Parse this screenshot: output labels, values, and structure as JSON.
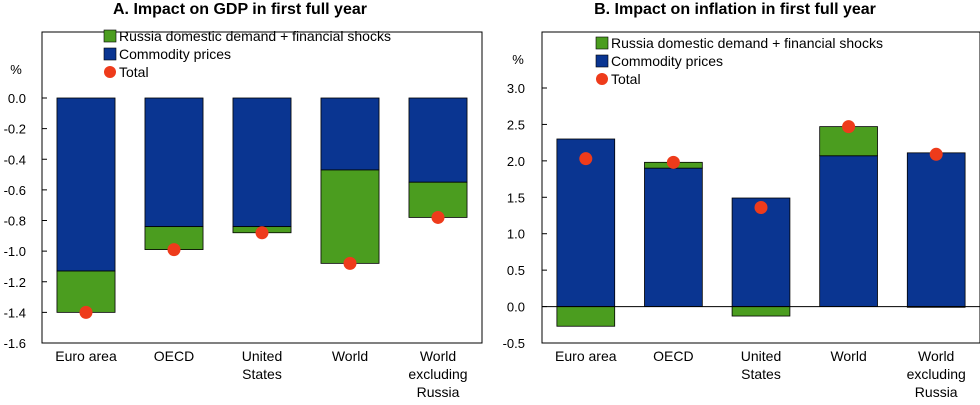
{
  "chart_data": [
    {
      "type": "bar",
      "stacked": true,
      "title": "A. Impact on GDP in first full year",
      "ylabel": "%",
      "ylim": [
        -1.6,
        0.0
      ],
      "yticks": [
        "0.0",
        "-0.2",
        "-0.4",
        "-0.6",
        "-0.8",
        "-1.0",
        "-1.2",
        "-1.4",
        "-1.6"
      ],
      "categories": [
        [
          "Euro area"
        ],
        [
          "OECD"
        ],
        [
          "United",
          "States"
        ],
        [
          "World"
        ],
        [
          "World",
          "excluding",
          "Russia"
        ]
      ],
      "series": [
        {
          "name": "Commodity prices",
          "color": "#0a3591",
          "values": [
            -1.13,
            -0.84,
            -0.84,
            -0.47,
            -0.55
          ]
        },
        {
          "name": "Russia domestic demand + financial shocks",
          "color": "#4b9d1f",
          "values": [
            -0.27,
            -0.15,
            -0.04,
            -0.61,
            -0.23
          ]
        }
      ],
      "total": {
        "name": "Total",
        "color": "#ee3b1b",
        "values": [
          -1.4,
          -0.99,
          -0.88,
          -1.08,
          -0.78
        ]
      }
    },
    {
      "type": "bar",
      "stacked": true,
      "title": "B. Impact on inflation in first full year",
      "ylabel": "%",
      "ylim": [
        -0.5,
        3.0
      ],
      "yticks": [
        "3.0",
        "2.5",
        "2.0",
        "1.5",
        "1.0",
        "0.5",
        "0.0",
        "-0.5"
      ],
      "categories": [
        [
          "Euro area"
        ],
        [
          "OECD"
        ],
        [
          "United",
          "States"
        ],
        [
          "World"
        ],
        [
          "World",
          "excluding",
          "Russia"
        ]
      ],
      "series": [
        {
          "name": "Commodity prices",
          "color": "#0a3591",
          "values": [
            2.3,
            1.9,
            1.49,
            2.07,
            2.11
          ]
        },
        {
          "name": "Russia domestic demand + financial shocks",
          "color": "#4b9d1f",
          "values": [
            -0.27,
            0.08,
            -0.13,
            0.4,
            -0.01
          ]
        }
      ],
      "total": {
        "name": "Total",
        "color": "#ee3b1b",
        "values": [
          2.03,
          1.98,
          1.36,
          2.47,
          2.09
        ]
      }
    }
  ]
}
